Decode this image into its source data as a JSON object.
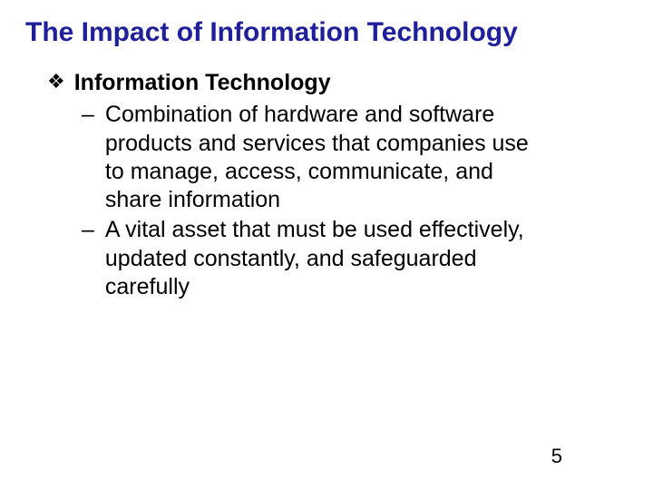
{
  "slide": {
    "title": "The Impact of Information Technology",
    "title_color": "#1f1f9c",
    "title_fontsize": 30,
    "background_color": "#ffffff",
    "text_color": "#000000",
    "body_fontsize": 25,
    "page_number": "5",
    "bullet_diamond": "❖",
    "bullet_dash": "–",
    "section": {
      "heading": "Information Technology",
      "items": [
        "Combination of hardware and software products and services that companies use to manage, access, communicate, and share information",
        "A vital asset that must be used effectively, updated constantly, and safeguarded carefully"
      ]
    }
  }
}
